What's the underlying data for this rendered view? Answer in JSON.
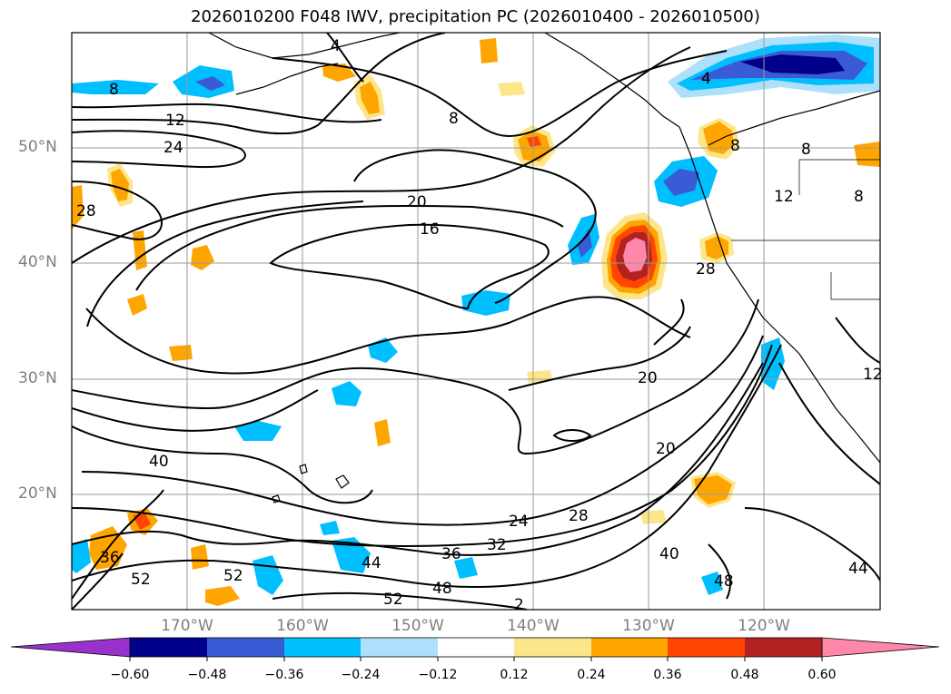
{
  "title": "2026010200 F048 IWV, precipitation PC (2026010400 - 2026010500)",
  "axes": {
    "lat_labels": [
      "50°N",
      "40°N",
      "30°N",
      "20°N"
    ],
    "lon_labels": [
      "170°W",
      "160°W",
      "150°W",
      "140°W",
      "130°W",
      "120°W"
    ]
  },
  "colorbar": {
    "tick_labels": [
      "−0.60",
      "−0.48",
      "−0.36",
      "−0.24",
      "−0.12",
      "0.12",
      "0.24",
      "0.36",
      "0.48",
      "0.60"
    ],
    "colors": [
      "#9932cc",
      "#00008b",
      "#3a5bd6",
      "#00bfff",
      "#aee0fb",
      "#ffffff",
      "#fde68a",
      "#ffa500",
      "#ff4500",
      "#b22222",
      "#ff88aa"
    ],
    "extend": "both"
  },
  "contour_labels": [
    "8",
    "12",
    "24",
    "28",
    "4",
    "8",
    "20",
    "16",
    "20",
    "20",
    "24",
    "28",
    "32",
    "36",
    "40",
    "44",
    "48",
    "52",
    "52",
    "48",
    "40",
    "44",
    "36",
    "52",
    "4",
    "8",
    "8",
    "12",
    "12",
    "8",
    "28",
    "2"
  ],
  "style": {
    "grid": true,
    "grid_color": "#9a9a9a",
    "contour_color": "#000000",
    "axis_label_color": "#7f7f7f"
  }
}
